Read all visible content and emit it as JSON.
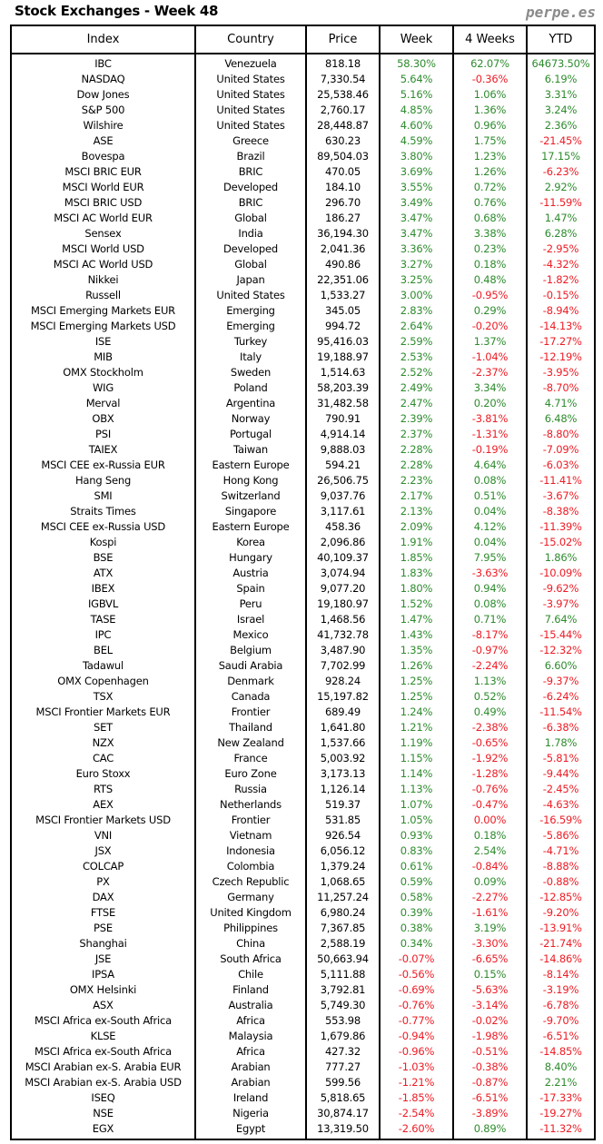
{
  "title": "Stock Exchanges - Week 48",
  "brand": "perpe.es",
  "colors": {
    "positive": "#2e8b2e",
    "negative": "#ee1c25"
  },
  "headers": [
    "Index",
    "Country",
    "Price",
    "Week",
    "4 Weeks",
    "YTD"
  ],
  "rows": [
    [
      "IBC",
      "Venezuela",
      "818.18",
      "58.30%",
      "62.07%",
      "64673.50%"
    ],
    [
      "NASDAQ",
      "United States",
      "7,330.54",
      "5.64%",
      "-0.36%",
      "6.19%"
    ],
    [
      "Dow Jones",
      "United States",
      "25,538.46",
      "5.16%",
      "1.06%",
      "3.31%"
    ],
    [
      "S&P 500",
      "United States",
      "2,760.17",
      "4.85%",
      "1.36%",
      "3.24%"
    ],
    [
      "Wilshire",
      "United States",
      "28,448.87",
      "4.60%",
      "0.96%",
      "2.36%"
    ],
    [
      "ASE",
      "Greece",
      "630.23",
      "4.59%",
      "1.75%",
      "-21.45%"
    ],
    [
      "Bovespa",
      "Brazil",
      "89,504.03",
      "3.80%",
      "1.23%",
      "17.15%"
    ],
    [
      "MSCI BRIC EUR",
      "BRIC",
      "470.05",
      "3.69%",
      "1.26%",
      "-6.23%"
    ],
    [
      "MSCI World EUR",
      "Developed",
      "184.10",
      "3.55%",
      "0.72%",
      "2.92%"
    ],
    [
      "MSCI BRIC USD",
      "BRIC",
      "296.70",
      "3.49%",
      "0.76%",
      "-11.59%"
    ],
    [
      "MSCI AC World EUR",
      "Global",
      "186.27",
      "3.47%",
      "0.68%",
      "1.47%"
    ],
    [
      "Sensex",
      "India",
      "36,194.30",
      "3.47%",
      "3.38%",
      "6.28%"
    ],
    [
      "MSCI World USD",
      "Developed",
      "2,041.36",
      "3.36%",
      "0.23%",
      "-2.95%"
    ],
    [
      "MSCI AC World USD",
      "Global",
      "490.86",
      "3.27%",
      "0.18%",
      "-4.32%"
    ],
    [
      "Nikkei",
      "Japan",
      "22,351.06",
      "3.25%",
      "0.48%",
      "-1.82%"
    ],
    [
      "Russell",
      "United States",
      "1,533.27",
      "3.00%",
      "-0.95%",
      "-0.15%"
    ],
    [
      "MSCI Emerging Markets EUR",
      "Emerging",
      "345.05",
      "2.83%",
      "0.29%",
      "-8.94%"
    ],
    [
      "MSCI Emerging Markets USD",
      "Emerging",
      "994.72",
      "2.64%",
      "-0.20%",
      "-14.13%"
    ],
    [
      "ISE",
      "Turkey",
      "95,416.03",
      "2.59%",
      "1.37%",
      "-17.27%"
    ],
    [
      "MIB",
      "Italy",
      "19,188.97",
      "2.53%",
      "-1.04%",
      "-12.19%"
    ],
    [
      "OMX Stockholm",
      "Sweden",
      "1,514.63",
      "2.52%",
      "-2.37%",
      "-3.95%"
    ],
    [
      "WIG",
      "Poland",
      "58,203.39",
      "2.49%",
      "3.34%",
      "-8.70%"
    ],
    [
      "Merval",
      "Argentina",
      "31,482.58",
      "2.47%",
      "0.20%",
      "4.71%"
    ],
    [
      "OBX",
      "Norway",
      "790.91",
      "2.39%",
      "-3.81%",
      "6.48%"
    ],
    [
      "PSI",
      "Portugal",
      "4,914.14",
      "2.37%",
      "-1.31%",
      "-8.80%"
    ],
    [
      "TAIEX",
      "Taiwan",
      "9,888.03",
      "2.28%",
      "-0.19%",
      "-7.09%"
    ],
    [
      "MSCI CEE ex-Russia EUR",
      "Eastern Europe",
      "594.21",
      "2.28%",
      "4.64%",
      "-6.03%"
    ],
    [
      "Hang Seng",
      "Hong Kong",
      "26,506.75",
      "2.23%",
      "0.08%",
      "-11.41%"
    ],
    [
      "SMI",
      "Switzerland",
      "9,037.76",
      "2.17%",
      "0.51%",
      "-3.67%"
    ],
    [
      "Straits Times",
      "Singapore",
      "3,117.61",
      "2.13%",
      "0.04%",
      "-8.38%"
    ],
    [
      "MSCI CEE ex-Russia USD",
      "Eastern Europe",
      "458.36",
      "2.09%",
      "4.12%",
      "-11.39%"
    ],
    [
      "Kospi",
      "Korea",
      "2,096.86",
      "1.91%",
      "0.04%",
      "-15.02%"
    ],
    [
      "BSE",
      "Hungary",
      "40,109.37",
      "1.85%",
      "7.95%",
      "1.86%"
    ],
    [
      "ATX",
      "Austria",
      "3,074.94",
      "1.83%",
      "-3.63%",
      "-10.09%"
    ],
    [
      "IBEX",
      "Spain",
      "9,077.20",
      "1.80%",
      "0.94%",
      "-9.62%"
    ],
    [
      "IGBVL",
      "Peru",
      "19,180.97",
      "1.52%",
      "0.08%",
      "-3.97%"
    ],
    [
      "TASE",
      "Israel",
      "1,468.56",
      "1.47%",
      "0.71%",
      "7.64%"
    ],
    [
      "IPC",
      "Mexico",
      "41,732.78",
      "1.43%",
      "-8.17%",
      "-15.44%"
    ],
    [
      "BEL",
      "Belgium",
      "3,487.90",
      "1.35%",
      "-0.97%",
      "-12.32%"
    ],
    [
      "Tadawul",
      "Saudi Arabia",
      "7,702.99",
      "1.26%",
      "-2.24%",
      "6.60%"
    ],
    [
      "OMX Copenhagen",
      "Denmark",
      "928.24",
      "1.25%",
      "1.13%",
      "-9.37%"
    ],
    [
      "TSX",
      "Canada",
      "15,197.82",
      "1.25%",
      "0.52%",
      "-6.24%"
    ],
    [
      "MSCI Frontier Markets EUR",
      "Frontier",
      "689.49",
      "1.24%",
      "0.49%",
      "-11.54%"
    ],
    [
      "SET",
      "Thailand",
      "1,641.80",
      "1.21%",
      "-2.38%",
      "-6.38%"
    ],
    [
      "NZX",
      "New Zealand",
      "1,537.66",
      "1.19%",
      "-0.65%",
      "1.78%"
    ],
    [
      "CAC",
      "France",
      "5,003.92",
      "1.15%",
      "-1.92%",
      "-5.81%"
    ],
    [
      "Euro Stoxx",
      "Euro Zone",
      "3,173.13",
      "1.14%",
      "-1.28%",
      "-9.44%"
    ],
    [
      "RTS",
      "Russia",
      "1,126.14",
      "1.13%",
      "-0.76%",
      "-2.45%"
    ],
    [
      "AEX",
      "Netherlands",
      "519.37",
      "1.07%",
      "-0.47%",
      "-4.63%"
    ],
    [
      "MSCI Frontier Markets USD",
      "Frontier",
      "531.85",
      "1.05%",
      "0.00%",
      "-16.59%"
    ],
    [
      "VNI",
      "Vietnam",
      "926.54",
      "0.93%",
      "0.18%",
      "-5.86%"
    ],
    [
      "JSX",
      "Indonesia",
      "6,056.12",
      "0.83%",
      "2.54%",
      "-4.71%"
    ],
    [
      "COLCAP",
      "Colombia",
      "1,379.24",
      "0.61%",
      "-0.84%",
      "-8.88%"
    ],
    [
      "PX",
      "Czech Republic",
      "1,068.65",
      "0.59%",
      "0.09%",
      "-0.88%"
    ],
    [
      "DAX",
      "Germany",
      "11,257.24",
      "0.58%",
      "-2.27%",
      "-12.85%"
    ],
    [
      "FTSE",
      "United Kingdom",
      "6,980.24",
      "0.39%",
      "-1.61%",
      "-9.20%"
    ],
    [
      "PSE",
      "Philippines",
      "7,367.85",
      "0.38%",
      "3.19%",
      "-13.91%"
    ],
    [
      "Shanghai",
      "China",
      "2,588.19",
      "0.34%",
      "-3.30%",
      "-21.74%"
    ],
    [
      "JSE",
      "South Africa",
      "50,663.94",
      "-0.07%",
      "-6.65%",
      "-14.86%"
    ],
    [
      "IPSA",
      "Chile",
      "5,111.88",
      "-0.56%",
      "0.15%",
      "-8.14%"
    ],
    [
      "OMX Helsinki",
      "Finland",
      "3,792.81",
      "-0.69%",
      "-5.63%",
      "-3.19%"
    ],
    [
      "ASX",
      "Australia",
      "5,749.30",
      "-0.76%",
      "-3.14%",
      "-6.78%"
    ],
    [
      "MSCI Africa ex-South Africa",
      "Africa",
      "553.98",
      "-0.77%",
      "-0.02%",
      "-9.70%"
    ],
    [
      "KLSE",
      "Malaysia",
      "1,679.86",
      "-0.94%",
      "-1.98%",
      "-6.51%"
    ],
    [
      "MSCI Africa ex-South Africa",
      "Africa",
      "427.32",
      "-0.96%",
      "-0.51%",
      "-14.85%"
    ],
    [
      "MSCI Arabian ex-S. Arabia EUR",
      "Arabian",
      "777.27",
      "-1.03%",
      "-0.38%",
      "8.40%"
    ],
    [
      "MSCI Arabian ex-S. Arabia USD",
      "Arabian",
      "599.56",
      "-1.21%",
      "-0.87%",
      "2.21%"
    ],
    [
      "ISEQ",
      "Ireland",
      "5,818.65",
      "-1.85%",
      "-6.51%",
      "-17.33%"
    ],
    [
      "NSE",
      "Nigeria",
      "30,874.17",
      "-2.54%",
      "-3.89%",
      "-19.27%"
    ],
    [
      "EGX",
      "Egypt",
      "13,319.50",
      "-2.60%",
      "0.89%",
      "-11.32%"
    ]
  ]
}
